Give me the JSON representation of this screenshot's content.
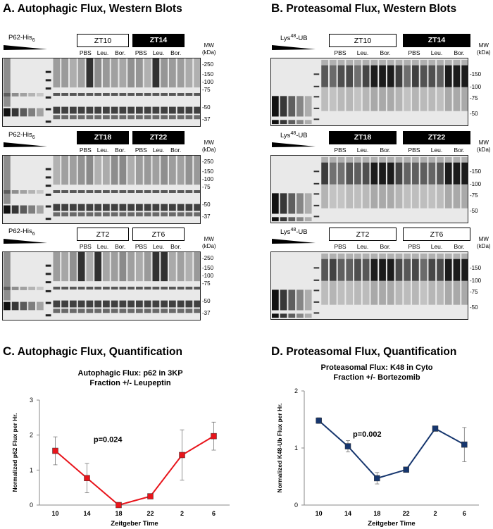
{
  "panels": {
    "A": {
      "letter": "A.",
      "title": "Autophagic Flux, Western Blots"
    },
    "B": {
      "letter": "B.",
      "title": "Proteasomal Flux, Western Blots"
    },
    "C": {
      "letter": "C.",
      "title": "Autophagic Flux, Quantification"
    },
    "D": {
      "letter": "D.",
      "title": "Proteasomal Flux, Quantification"
    }
  },
  "blots": {
    "mw_label_1": "MW",
    "mw_label_2": "(kDa)",
    "treatments": [
      "PBS",
      "Leu.",
      "Bor."
    ],
    "autophagic_sample": "P62-His",
    "autophagic_sub": "6",
    "proteasomal_sample": "Lys",
    "proteasomal_sup": "48",
    "proteasomal_suffix": "-UB",
    "rows_A": [
      {
        "left": "ZT10",
        "left_style": "open",
        "right": "ZT14",
        "right_style": "filled",
        "ticks": [
          "-250",
          "-150",
          "-100",
          "-75",
          "-50",
          "-37"
        ]
      },
      {
        "left": "ZT18",
        "left_style": "filled",
        "right": "ZT22",
        "right_style": "filled",
        "ticks": [
          "-250",
          "-150",
          "-100",
          "-75",
          "-50",
          "-37"
        ]
      },
      {
        "left": "ZT2",
        "left_style": "open",
        "right": "ZT6",
        "right_style": "open",
        "ticks": [
          "-250",
          "-150",
          "-100",
          "-75",
          "-50",
          "-37"
        ]
      }
    ],
    "rows_B": [
      {
        "left": "ZT10",
        "left_style": "open",
        "right": "ZT14",
        "right_style": "filled",
        "ticks": [
          "-150",
          "-100",
          "-75",
          "-50"
        ]
      },
      {
        "left": "ZT18",
        "left_style": "filled",
        "right": "ZT22",
        "right_style": "filled",
        "ticks": [
          "-150",
          "-100",
          "-75",
          "-50"
        ]
      },
      {
        "left": "ZT2",
        "left_style": "open",
        "right": "ZT6",
        "right_style": "open",
        "ticks": [
          "-150",
          "-100",
          "-75",
          "-50"
        ]
      }
    ]
  },
  "chart_data": [
    {
      "type": "line",
      "title": "Autophagic Flux: p62 in 3KP Fraction +/- Leupeptin",
      "title_line1": "Autophagic Flux: p62 in 3KP",
      "title_line2": "Fraction +/- Leupeptin",
      "xlabel": "Zeitgeber Time",
      "ylabel": "Normalized p62 Flux per Hr.",
      "categories": [
        "10",
        "14",
        "18",
        "22",
        "2",
        "6"
      ],
      "values": [
        1.55,
        0.77,
        0.0,
        0.25,
        1.43,
        1.97
      ],
      "errors": [
        0.4,
        0.42,
        0.03,
        0.05,
        0.72,
        0.4
      ],
      "ylim": [
        0,
        3
      ],
      "yticks": [
        "0",
        "1",
        "2",
        "3"
      ],
      "annotation": "p=0.024",
      "color": "#e8141b",
      "marker": "square",
      "grid": false
    },
    {
      "type": "line",
      "title": "Proteasomal Flux: K48 in Cyto Fraction +/- Bortezomib",
      "title_line1": "Proteasomal Flux: K48 in Cyto",
      "title_line2": "Fraction +/- Bortezomib",
      "xlabel": "Zeitgeber Time",
      "ylabel": "Normalized K48-Ub Flux per Hr.",
      "categories": [
        "10",
        "14",
        "18",
        "22",
        "2",
        "6"
      ],
      "values": [
        1.48,
        1.03,
        0.47,
        0.62,
        1.34,
        1.06
      ],
      "errors": [
        0.05,
        0.1,
        0.1,
        0.03,
        0.03,
        0.3
      ],
      "ylim": [
        0,
        2
      ],
      "yticks": [
        "0",
        "1",
        "2"
      ],
      "annotation": "p=0.002",
      "color": "#16366e",
      "marker": "square",
      "grid": false
    }
  ],
  "colors": {
    "bar_filled": "#000000",
    "blot_bg": "#ffffff",
    "band": "#000000"
  }
}
